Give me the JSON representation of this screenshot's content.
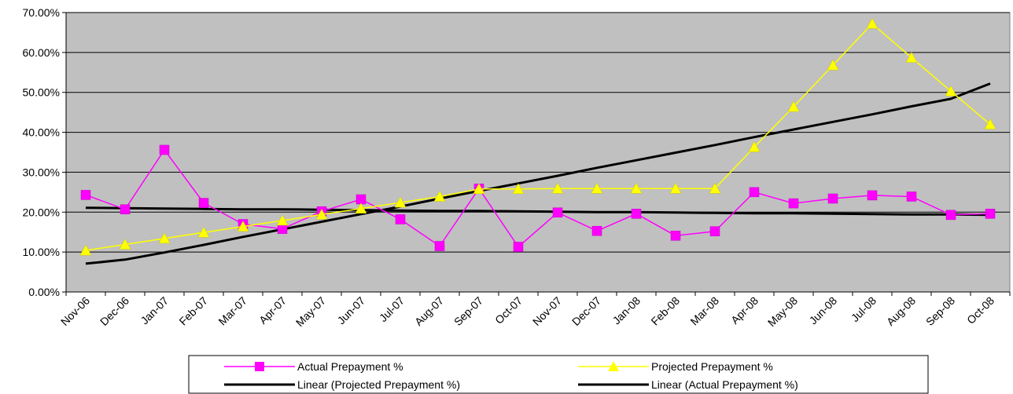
{
  "chart_data": {
    "type": "line",
    "categories": [
      "Nov-06",
      "Dec-06",
      "Jan-07",
      "Feb-07",
      "Mar-07",
      "Apr-07",
      "May-07",
      "Jun-07",
      "Jul-07",
      "Aug-07",
      "Sep-07",
      "Oct-07",
      "Nov-07",
      "Dec-07",
      "Jan-08",
      "Feb-08",
      "Mar-08",
      "Apr-08",
      "May-08",
      "Jun-08",
      "Jul-08",
      "Aug-08",
      "Sep-08",
      "Oct-08"
    ],
    "y_ticks": [
      "0.00%",
      "10.00%",
      "20.00%",
      "30.00%",
      "40.00%",
      "50.00%",
      "60.00%",
      "70.00%"
    ],
    "ylim": [
      0,
      70
    ],
    "grid": "horizontal",
    "plot_background": "#c0c0c0",
    "legend_position": "bottom",
    "series": [
      {
        "name": "Actual Prepayment %",
        "color": "#ff00ff",
        "marker": "square",
        "values": [
          24.3,
          20.7,
          35.6,
          22.3,
          17.0,
          15.8,
          20.2,
          23.2,
          18.2,
          11.5,
          25.9,
          11.3,
          19.9,
          15.3,
          19.6,
          14.1,
          15.2,
          25.0,
          22.2,
          23.4,
          24.2,
          23.9,
          19.3,
          19.6
        ]
      },
      {
        "name": "Projected Prepayment %",
        "color": "#ffff00",
        "marker": "triangle",
        "values": [
          10.4,
          11.9,
          13.4,
          14.9,
          16.4,
          17.9,
          19.4,
          20.9,
          22.4,
          23.9,
          25.8,
          25.8,
          25.9,
          25.9,
          25.9,
          25.9,
          25.9,
          36.3,
          46.4,
          56.8,
          67.2,
          58.7,
          50.3,
          42.0
        ]
      },
      {
        "name": "Linear (Projected Prepayment %)",
        "color": "#000000",
        "marker": "none",
        "trendline": true,
        "values": [
          7.1,
          8.1,
          9.9,
          11.8,
          13.8,
          15.7,
          17.6,
          19.5,
          21.4,
          23.4,
          25.3,
          27.2,
          29.1,
          31.1,
          33.0,
          34.9,
          36.8,
          38.8,
          40.7,
          42.6,
          44.5,
          46.5,
          48.4,
          52.2
        ]
      },
      {
        "name": "Linear (Actual Prepayment %)",
        "color": "#000000",
        "marker": "none",
        "trendline": true,
        "values": [
          21.1,
          21.0,
          20.9,
          20.8,
          20.7,
          20.7,
          20.6,
          20.5,
          20.4,
          20.3,
          20.3,
          20.2,
          20.1,
          20.0,
          20.0,
          19.9,
          19.8,
          19.7,
          19.7,
          19.6,
          19.5,
          19.4,
          19.4,
          19.3
        ]
      }
    ]
  }
}
